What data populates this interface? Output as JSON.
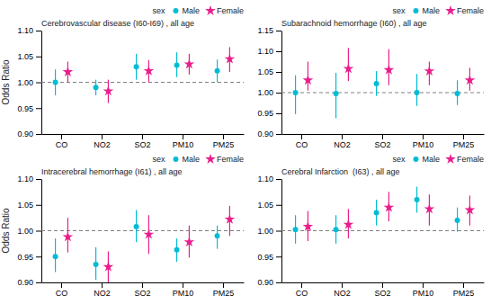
{
  "chart_data": [
    {
      "type": "errorbar",
      "title": "Cerebrovascular disease (I60-I69) , all age",
      "categories": [
        "CO",
        "NO2",
        "SO2",
        "PM10",
        "PM25"
      ],
      "ylabel": "Odds Ratio",
      "ylim": [
        0.9,
        1.1
      ],
      "yticks": [
        {
          "value": 0.9,
          "label": "0.90"
        },
        0.95,
        {
          "value": 1.0,
          "label": "1.00"
        },
        1.05,
        {
          "value": 1.1,
          "label": "1.10"
        }
      ],
      "reference_line": 1.0,
      "legend": "top",
      "legend_title": "sex",
      "series": [
        {
          "name": "Male",
          "color": "#00BCD4",
          "marker": "circle",
          "values": [
            1.0,
            0.99,
            1.03,
            1.033,
            1.022
          ],
          "lower": [
            0.975,
            0.975,
            1.005,
            1.01,
            1.0
          ],
          "upper": [
            1.025,
            1.005,
            1.055,
            1.058,
            1.044
          ]
        },
        {
          "name": "Female",
          "color": "#E91E8C",
          "marker": "star",
          "values": [
            1.02,
            0.983,
            1.022,
            1.035,
            1.045
          ],
          "lower": [
            1.0,
            0.96,
            1.0,
            1.015,
            1.02
          ],
          "upper": [
            1.04,
            1.005,
            1.043,
            1.055,
            1.068
          ]
        }
      ]
    },
    {
      "type": "errorbar",
      "title": "Subarachnoid hemorrhage (I60) , all age",
      "categories": [
        "CO",
        "NO2",
        "SO2",
        "PM10",
        "PM25"
      ],
      "ylim": [
        0.9,
        1.15
      ],
      "yticks": [
        {
          "value": 0.9,
          "label": "0.90"
        },
        0.95,
        {
          "value": 1.0,
          "label": "1.00"
        },
        1.05,
        {
          "value": 1.1,
          "label": "1.10"
        },
        1.15
      ],
      "reference_line": 1.0,
      "legend": "top",
      "legend_title": "sex",
      "series": [
        {
          "name": "Male",
          "color": "#00BCD4",
          "marker": "circle",
          "values": [
            1.0,
            0.998,
            1.022,
            1.0,
            0.998
          ],
          "lower": [
            0.948,
            0.938,
            0.992,
            0.968,
            0.97
          ],
          "upper": [
            1.042,
            1.048,
            1.052,
            1.045,
            1.03
          ]
        },
        {
          "name": "Female",
          "color": "#E91E8C",
          "marker": "star",
          "values": [
            1.03,
            1.058,
            1.055,
            1.052,
            1.03
          ],
          "lower": [
            1.005,
            1.028,
            1.018,
            1.018,
            1.005
          ],
          "upper": [
            1.075,
            1.108,
            1.105,
            1.075,
            1.06
          ]
        }
      ]
    },
    {
      "type": "errorbar",
      "title": "Intracerebral hemorrhage (I61) , all age",
      "categories": [
        "CO",
        "NO2",
        "SO2",
        "PM10",
        "PM25"
      ],
      "ylabel": "Odds Ratio",
      "ylim": [
        0.9,
        1.1
      ],
      "yticks": [
        {
          "value": 0.9,
          "label": "0.90"
        },
        0.95,
        {
          "value": 1.0,
          "label": "1.00"
        },
        1.05,
        {
          "value": 1.1,
          "label": "1.10"
        }
      ],
      "reference_line": 1.0,
      "legend": "top",
      "legend_title": "sex",
      "series": [
        {
          "name": "Male",
          "color": "#00BCD4",
          "marker": "circle",
          "values": [
            0.95,
            0.935,
            1.008,
            0.963,
            0.99
          ],
          "lower": [
            0.92,
            0.905,
            0.978,
            0.94,
            0.965
          ],
          "upper": [
            0.985,
            0.968,
            1.04,
            0.985,
            1.01
          ]
        },
        {
          "name": "Female",
          "color": "#E91E8C",
          "marker": "star",
          "values": [
            0.988,
            0.93,
            0.993,
            0.978,
            1.022
          ],
          "lower": [
            0.958,
            0.9,
            0.955,
            0.948,
            0.99
          ],
          "upper": [
            1.025,
            0.96,
            1.03,
            1.01,
            1.048
          ]
        }
      ]
    },
    {
      "type": "errorbar",
      "title": "Cerebral Infarction  (I63) , all age",
      "categories": [
        "CO",
        "NO2",
        "SO2",
        "PM10",
        "PM25"
      ],
      "ylim": [
        0.9,
        1.1
      ],
      "yticks": [
        {
          "value": 0.9,
          "label": "0.90"
        },
        0.95,
        {
          "value": 1.0,
          "label": "1.00"
        },
        1.05,
        {
          "value": 1.1,
          "label": "1.10"
        }
      ],
      "reference_line": 1.0,
      "legend": "top",
      "legend_title": "sex",
      "series": [
        {
          "name": "Male",
          "color": "#00BCD4",
          "marker": "circle",
          "values": [
            1.002,
            1.002,
            1.035,
            1.06,
            1.02
          ],
          "lower": [
            0.975,
            0.975,
            1.01,
            1.035,
            0.998
          ],
          "upper": [
            1.03,
            1.03,
            1.06,
            1.085,
            1.045
          ]
        },
        {
          "name": "Female",
          "color": "#E91E8C",
          "marker": "star",
          "values": [
            1.008,
            1.012,
            1.045,
            1.042,
            1.04
          ],
          "lower": [
            0.98,
            0.985,
            1.018,
            1.01,
            1.01
          ],
          "upper": [
            1.038,
            1.042,
            1.075,
            1.07,
            1.068
          ]
        }
      ]
    }
  ]
}
